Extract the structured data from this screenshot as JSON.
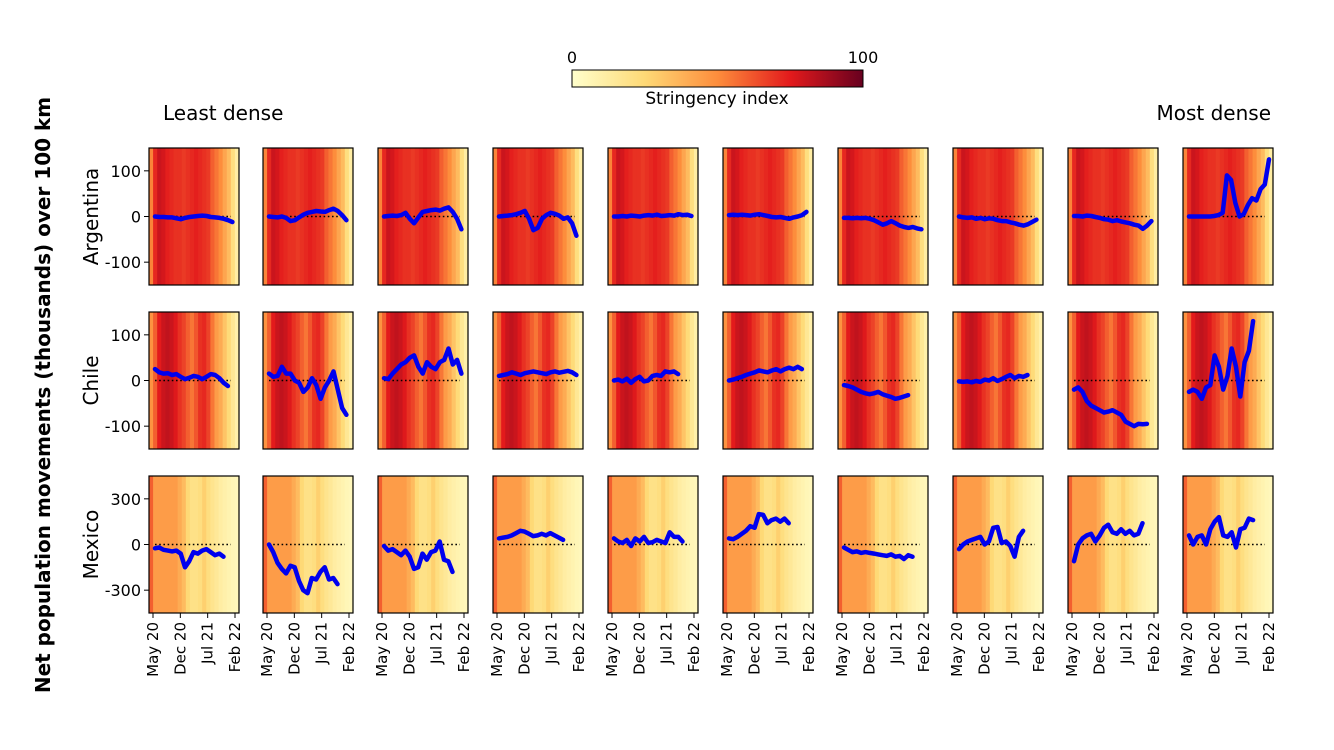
{
  "chart_data": {
    "type": "line",
    "title": "",
    "ylabel": "Net population movements (thousands) over 100 km",
    "density_low_label": "Least dense",
    "density_high_label": "Most dense",
    "colorbar": {
      "label": "Stringency index",
      "min_label": "0",
      "max_label": "100",
      "min": 0,
      "max": 100,
      "colors": [
        "#ffffcc",
        "#fed976",
        "#fd8d3c",
        "#e31a1c",
        "#67001f"
      ]
    },
    "x_tick_labels": [
      "May 20",
      "Dec 20",
      "Jul 21",
      "Feb 22"
    ],
    "x_tick_positions": [
      0,
      7,
      14,
      21
    ],
    "x_range": [
      0,
      21
    ],
    "line_color": "#0000ee",
    "countries": [
      {
        "name": "Argentina",
        "ylim": [
          -150,
          150
        ],
        "yticks": [
          100,
          0,
          -100
        ],
        "ytick_labels": [
          "100",
          "0",
          "-100"
        ],
        "stringency": [
          52,
          72,
          80,
          78,
          74,
          72,
          70,
          70,
          68,
          70,
          72,
          74,
          72,
          70,
          68,
          60,
          55,
          50,
          42,
          35,
          22,
          12
        ],
        "series": [
          [
            0,
            -1,
            -1,
            -2,
            -2,
            -4,
            -6,
            -3,
            -1,
            0,
            1,
            2,
            1,
            -1,
            -2,
            -3,
            -5,
            -8,
            -12
          ],
          [
            0,
            -1,
            -2,
            0,
            -3,
            -10,
            -8,
            -2,
            4,
            8,
            10,
            12,
            11,
            10,
            14,
            17,
            12,
            3,
            -8
          ],
          [
            0,
            1,
            2,
            1,
            3,
            8,
            -5,
            -15,
            -2,
            10,
            12,
            14,
            15,
            13,
            17,
            20,
            10,
            -5,
            -28
          ],
          [
            0,
            1,
            2,
            3,
            5,
            8,
            12,
            -5,
            -30,
            -25,
            -5,
            3,
            8,
            6,
            2,
            -5,
            -2,
            -15,
            -42
          ],
          [
            0,
            0,
            1,
            0,
            2,
            1,
            0,
            2,
            3,
            2,
            4,
            1,
            2,
            3,
            2,
            5,
            3,
            4,
            1
          ],
          [
            3,
            4,
            3,
            4,
            3,
            2,
            4,
            5,
            3,
            1,
            -1,
            -2,
            -1,
            -3,
            -5,
            -2,
            0,
            3,
            10
          ],
          [
            -3,
            -3,
            -4,
            -3,
            -4,
            -3,
            -5,
            -8,
            -13,
            -18,
            -15,
            -10,
            -15,
            -20,
            -23,
            -25,
            -23,
            -26,
            -28
          ],
          [
            0,
            -2,
            -3,
            -2,
            -5,
            -3,
            -6,
            -4,
            -5,
            -8,
            -10,
            -10,
            -13,
            -15,
            -18,
            -20,
            -17,
            -12,
            -7
          ],
          [
            1,
            1,
            0,
            2,
            1,
            -1,
            -3,
            -6,
            -7,
            -10,
            -8,
            -11,
            -13,
            -15,
            -18,
            -20,
            -27,
            -20,
            -10
          ],
          [
            0,
            0,
            0,
            0,
            0,
            0,
            1,
            3,
            8,
            90,
            80,
            30,
            0,
            5,
            25,
            40,
            35,
            60,
            70,
            125
          ]
        ]
      },
      {
        "name": "Chile",
        "ylim": [
          -150,
          150
        ],
        "yticks": [
          100,
          0,
          -100
        ],
        "ytick_labels": [
          "100",
          "0",
          "-100"
        ],
        "stringency": [
          48,
          60,
          75,
          80,
          82,
          80,
          76,
          70,
          66,
          60,
          55,
          62,
          70,
          72,
          66,
          55,
          45,
          40,
          32,
          24,
          16,
          10
        ],
        "series": [
          [
            25,
            18,
            15,
            16,
            12,
            14,
            8,
            3,
            6,
            10,
            8,
            3,
            8,
            14,
            12,
            5,
            -5,
            -12
          ],
          [
            15,
            8,
            10,
            30,
            15,
            15,
            0,
            -5,
            -25,
            -15,
            5,
            -10,
            -40,
            -15,
            0,
            20,
            -20,
            -60,
            -75
          ],
          [
            5,
            3,
            15,
            25,
            35,
            40,
            50,
            55,
            30,
            15,
            40,
            30,
            25,
            40,
            45,
            70,
            35,
            45,
            15
          ],
          [
            10,
            12,
            14,
            18,
            15,
            12,
            16,
            18,
            20,
            18,
            16,
            14,
            18,
            20,
            17,
            19,
            21,
            18,
            12
          ],
          [
            0,
            2,
            -2,
            4,
            -5,
            3,
            8,
            -2,
            0,
            10,
            12,
            10,
            20,
            18,
            20,
            14
          ],
          [
            0,
            2,
            5,
            8,
            12,
            15,
            18,
            22,
            20,
            18,
            22,
            25,
            20,
            25,
            28,
            25,
            30,
            25
          ],
          [
            -10,
            -12,
            -15,
            -20,
            -25,
            -28,
            -30,
            -28,
            -25,
            -30,
            -33,
            -36,
            -40,
            -38,
            -35,
            -32
          ],
          [
            -2,
            -3,
            -2,
            -4,
            -1,
            -3,
            2,
            0,
            5,
            -1,
            3,
            8,
            12,
            5,
            10,
            8,
            12
          ],
          [
            -20,
            -15,
            -25,
            -45,
            -55,
            -60,
            -65,
            -70,
            -68,
            -65,
            -70,
            -75,
            -90,
            -95,
            -100,
            -95,
            -96,
            -95
          ],
          [
            -25,
            -20,
            -25,
            -40,
            -15,
            -10,
            55,
            30,
            -20,
            10,
            70,
            30,
            -35,
            40,
            65,
            130
          ]
        ]
      },
      {
        "name": "Mexico",
        "ylim": [
          -450,
          450
        ],
        "yticks": [
          300,
          0,
          -300
        ],
        "ytick_labels": [
          "300",
          "0",
          "-300"
        ],
        "stringency": [
          60,
          45,
          45,
          45,
          45,
          45,
          45,
          40,
          35,
          25,
          20,
          20,
          22,
          28,
          22,
          18,
          15,
          12,
          10,
          8,
          6,
          5
        ],
        "series": [
          [
            -25,
            -20,
            -35,
            -40,
            -45,
            -40,
            -60,
            -150,
            -110,
            -50,
            -60,
            -40,
            -30,
            -50,
            -70,
            -60,
            -80
          ],
          [
            0,
            -50,
            -120,
            -160,
            -190,
            -140,
            -150,
            -240,
            -300,
            -320,
            -220,
            -230,
            -180,
            -150,
            -230,
            -220,
            -260
          ],
          [
            -10,
            -40,
            -30,
            -50,
            -70,
            -40,
            -80,
            -160,
            -150,
            -60,
            -100,
            -50,
            -40,
            20,
            -100,
            -110,
            -180
          ],
          [
            40,
            45,
            50,
            60,
            75,
            90,
            85,
            70,
            55,
            60,
            70,
            60,
            75,
            60,
            45,
            30
          ],
          [
            40,
            20,
            10,
            30,
            -10,
            40,
            20,
            50,
            10,
            15,
            30,
            20,
            10,
            80,
            50,
            50,
            20
          ],
          [
            40,
            35,
            50,
            70,
            90,
            120,
            110,
            200,
            195,
            140,
            160,
            170,
            150,
            170,
            140
          ],
          [
            -20,
            -35,
            -50,
            -45,
            -55,
            -50,
            -55,
            -60,
            -65,
            -70,
            -75,
            -65,
            -80,
            -75,
            -95,
            -70,
            -80
          ],
          [
            -30,
            0,
            20,
            30,
            40,
            50,
            0,
            20,
            110,
            115,
            10,
            20,
            -10,
            -80,
            50,
            90
          ],
          [
            -110,
            0,
            40,
            60,
            70,
            20,
            60,
            110,
            130,
            80,
            70,
            100,
            70,
            90,
            60,
            70,
            140
          ],
          [
            60,
            0,
            50,
            60,
            0,
            100,
            150,
            180,
            60,
            50,
            80,
            -20,
            100,
            110,
            170,
            160
          ]
        ]
      }
    ]
  }
}
